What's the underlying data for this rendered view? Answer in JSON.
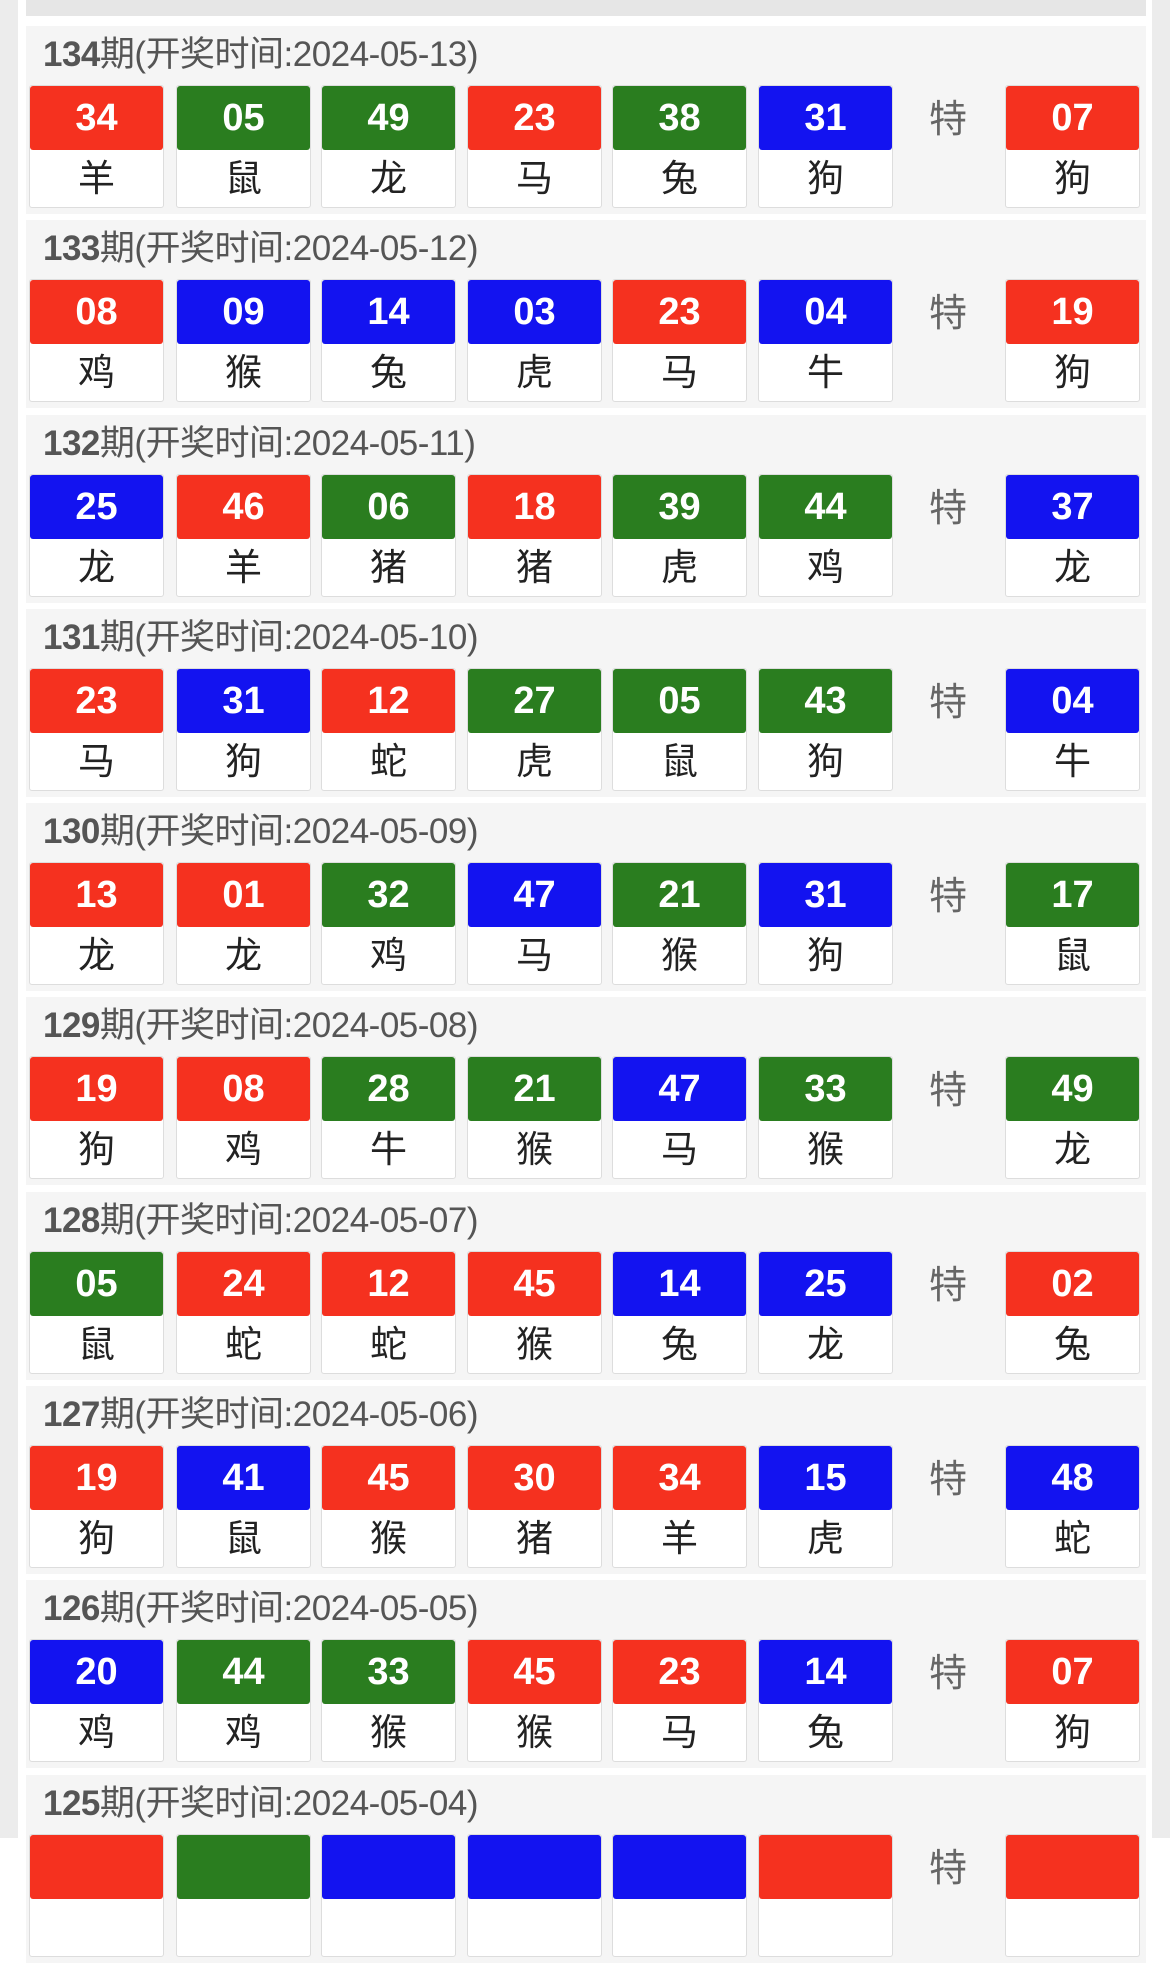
{
  "colors": {
    "red": "#f5311f",
    "green": "#2a7d1f",
    "blue": "#1313f0"
  },
  "title_label": "期(开奖时间:",
  "title_close": ")",
  "special_label": "特",
  "rows": [
    {
      "issue": "134",
      "date": "2024-05-13",
      "balls": [
        {
          "num": "34",
          "zodiac": "羊",
          "color": "red"
        },
        {
          "num": "05",
          "zodiac": "鼠",
          "color": "green"
        },
        {
          "num": "49",
          "zodiac": "龙",
          "color": "green"
        },
        {
          "num": "23",
          "zodiac": "马",
          "color": "red"
        },
        {
          "num": "38",
          "zodiac": "兔",
          "color": "green"
        },
        {
          "num": "31",
          "zodiac": "狗",
          "color": "blue"
        }
      ],
      "special": {
        "num": "07",
        "zodiac": "狗",
        "color": "red"
      }
    },
    {
      "issue": "133",
      "date": "2024-05-12",
      "balls": [
        {
          "num": "08",
          "zodiac": "鸡",
          "color": "red"
        },
        {
          "num": "09",
          "zodiac": "猴",
          "color": "blue"
        },
        {
          "num": "14",
          "zodiac": "兔",
          "color": "blue"
        },
        {
          "num": "03",
          "zodiac": "虎",
          "color": "blue"
        },
        {
          "num": "23",
          "zodiac": "马",
          "color": "red"
        },
        {
          "num": "04",
          "zodiac": "牛",
          "color": "blue"
        }
      ],
      "special": {
        "num": "19",
        "zodiac": "狗",
        "color": "red"
      }
    },
    {
      "issue": "132",
      "date": "2024-05-11",
      "balls": [
        {
          "num": "25",
          "zodiac": "龙",
          "color": "blue"
        },
        {
          "num": "46",
          "zodiac": "羊",
          "color": "red"
        },
        {
          "num": "06",
          "zodiac": "猪",
          "color": "green"
        },
        {
          "num": "18",
          "zodiac": "猪",
          "color": "red"
        },
        {
          "num": "39",
          "zodiac": "虎",
          "color": "green"
        },
        {
          "num": "44",
          "zodiac": "鸡",
          "color": "green"
        }
      ],
      "special": {
        "num": "37",
        "zodiac": "龙",
        "color": "blue"
      }
    },
    {
      "issue": "131",
      "date": "2024-05-10",
      "balls": [
        {
          "num": "23",
          "zodiac": "马",
          "color": "red"
        },
        {
          "num": "31",
          "zodiac": "狗",
          "color": "blue"
        },
        {
          "num": "12",
          "zodiac": "蛇",
          "color": "red"
        },
        {
          "num": "27",
          "zodiac": "虎",
          "color": "green"
        },
        {
          "num": "05",
          "zodiac": "鼠",
          "color": "green"
        },
        {
          "num": "43",
          "zodiac": "狗",
          "color": "green"
        }
      ],
      "special": {
        "num": "04",
        "zodiac": "牛",
        "color": "blue"
      }
    },
    {
      "issue": "130",
      "date": "2024-05-09",
      "balls": [
        {
          "num": "13",
          "zodiac": "龙",
          "color": "red"
        },
        {
          "num": "01",
          "zodiac": "龙",
          "color": "red"
        },
        {
          "num": "32",
          "zodiac": "鸡",
          "color": "green"
        },
        {
          "num": "47",
          "zodiac": "马",
          "color": "blue"
        },
        {
          "num": "21",
          "zodiac": "猴",
          "color": "green"
        },
        {
          "num": "31",
          "zodiac": "狗",
          "color": "blue"
        }
      ],
      "special": {
        "num": "17",
        "zodiac": "鼠",
        "color": "green"
      }
    },
    {
      "issue": "129",
      "date": "2024-05-08",
      "balls": [
        {
          "num": "19",
          "zodiac": "狗",
          "color": "red"
        },
        {
          "num": "08",
          "zodiac": "鸡",
          "color": "red"
        },
        {
          "num": "28",
          "zodiac": "牛",
          "color": "green"
        },
        {
          "num": "21",
          "zodiac": "猴",
          "color": "green"
        },
        {
          "num": "47",
          "zodiac": "马",
          "color": "blue"
        },
        {
          "num": "33",
          "zodiac": "猴",
          "color": "green"
        }
      ],
      "special": {
        "num": "49",
        "zodiac": "龙",
        "color": "green"
      }
    },
    {
      "issue": "128",
      "date": "2024-05-07",
      "balls": [
        {
          "num": "05",
          "zodiac": "鼠",
          "color": "green"
        },
        {
          "num": "24",
          "zodiac": "蛇",
          "color": "red"
        },
        {
          "num": "12",
          "zodiac": "蛇",
          "color": "red"
        },
        {
          "num": "45",
          "zodiac": "猴",
          "color": "red"
        },
        {
          "num": "14",
          "zodiac": "兔",
          "color": "blue"
        },
        {
          "num": "25",
          "zodiac": "龙",
          "color": "blue"
        }
      ],
      "special": {
        "num": "02",
        "zodiac": "兔",
        "color": "red"
      }
    },
    {
      "issue": "127",
      "date": "2024-05-06",
      "balls": [
        {
          "num": "19",
          "zodiac": "狗",
          "color": "red"
        },
        {
          "num": "41",
          "zodiac": "鼠",
          "color": "blue"
        },
        {
          "num": "45",
          "zodiac": "猴",
          "color": "red"
        },
        {
          "num": "30",
          "zodiac": "猪",
          "color": "red"
        },
        {
          "num": "34",
          "zodiac": "羊",
          "color": "red"
        },
        {
          "num": "15",
          "zodiac": "虎",
          "color": "blue"
        }
      ],
      "special": {
        "num": "48",
        "zodiac": "蛇",
        "color": "blue"
      }
    },
    {
      "issue": "126",
      "date": "2024-05-05",
      "balls": [
        {
          "num": "20",
          "zodiac": "鸡",
          "color": "blue"
        },
        {
          "num": "44",
          "zodiac": "鸡",
          "color": "green"
        },
        {
          "num": "33",
          "zodiac": "猴",
          "color": "green"
        },
        {
          "num": "45",
          "zodiac": "猴",
          "color": "red"
        },
        {
          "num": "23",
          "zodiac": "马",
          "color": "red"
        },
        {
          "num": "14",
          "zodiac": "兔",
          "color": "blue"
        }
      ],
      "special": {
        "num": "07",
        "zodiac": "狗",
        "color": "red"
      }
    },
    {
      "issue": "125",
      "date": "2024-05-04",
      "balls": [
        {
          "color": "red"
        },
        {
          "color": "green"
        },
        {
          "color": "blue"
        },
        {
          "color": "blue"
        },
        {
          "color": "blue"
        },
        {
          "color": "red"
        }
      ],
      "special": {
        "color": "red"
      }
    }
  ]
}
